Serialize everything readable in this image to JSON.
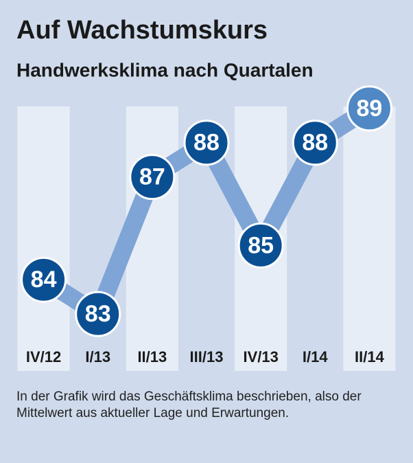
{
  "chart_data": {
    "type": "line",
    "title": "Auf Wachstumskurs",
    "subtitle": "Handwerksklima nach Quartalen",
    "categories": [
      "IV/12",
      "I/13",
      "II/13",
      "III/13",
      "IV/13",
      "I/14",
      "II/14"
    ],
    "values": [
      84,
      83,
      87,
      88,
      85,
      88,
      89
    ],
    "line_color": "#7fa4d6",
    "marker_color": "#0b4f93",
    "last_marker_color": "#4f88c4",
    "ylim": [
      82,
      90
    ],
    "note": "In der Grafik wird das Geschäftsklima beschrieben, also der Mittelwert aus aktueller Lage und Erwartungen."
  }
}
